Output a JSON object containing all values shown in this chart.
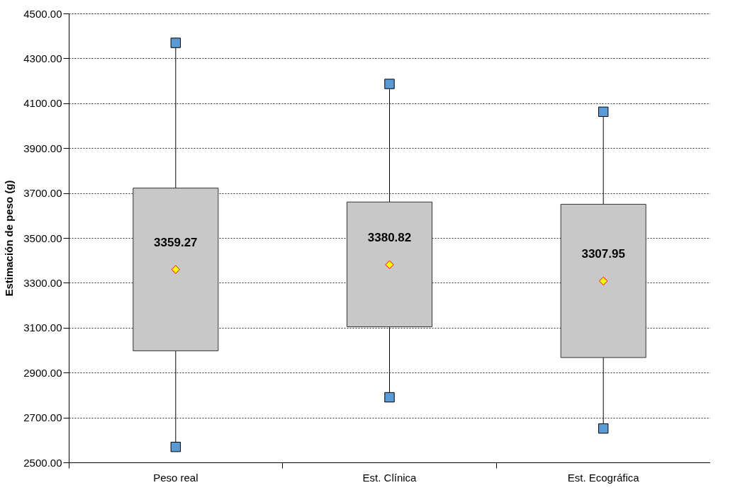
{
  "chart_data": {
    "type": "box",
    "ylabel": "Estimación de peso (g)",
    "categories": [
      "Peso real",
      "Est. Clínica",
      "Est. Ecográfica"
    ],
    "series": [
      {
        "color": "#c8c8c8",
        "boxes": [
          {
            "low": 2569,
            "q1": 2997,
            "q3": 3722,
            "high": 4369
          },
          {
            "low": 2790,
            "q1": 3104,
            "q3": 3660,
            "high": 4186
          },
          {
            "low": 2651,
            "q1": 2967,
            "q3": 3650,
            "high": 4062
          }
        ]
      },
      {
        "type": "scatter",
        "color": "#5b9bd5",
        "marker": "square",
        "x": [
          "Peso real",
          "Est. Clínica",
          "Est. Ecográfica",
          "Peso real",
          "Est. Clínica",
          "Est. Ecográfica"
        ],
        "values": [
          2569,
          2790,
          2651,
          4369,
          4186,
          4062
        ]
      },
      {
        "type": "scatter",
        "color": "#ffff00",
        "marker": "diamond",
        "x": [
          "Peso real",
          "Est. Clínica",
          "Est. Ecográfica"
        ],
        "values": [
          3359.27,
          3380.82,
          3307.95
        ],
        "value_labels": [
          "3359.27",
          "3380.82",
          "3307.95"
        ]
      }
    ],
    "ylim": [
      2500,
      4500
    ],
    "yticks": [
      {
        "value": 2500,
        "label": "2500.00"
      },
      {
        "value": 2700,
        "label": "2700.00"
      },
      {
        "value": 2900,
        "label": "2900.00"
      },
      {
        "value": 3100,
        "label": "3100.00"
      },
      {
        "value": 3300,
        "label": "3300.00"
      },
      {
        "value": 3500,
        "label": "3500.00"
      },
      {
        "value": 3700,
        "label": "3700.00"
      },
      {
        "value": 3900,
        "label": "3900.00"
      },
      {
        "value": 4100,
        "label": "4100.00"
      },
      {
        "value": 4300,
        "label": "4300.00"
      },
      {
        "value": 4500,
        "label": "4500.00"
      }
    ],
    "grid": "y"
  }
}
